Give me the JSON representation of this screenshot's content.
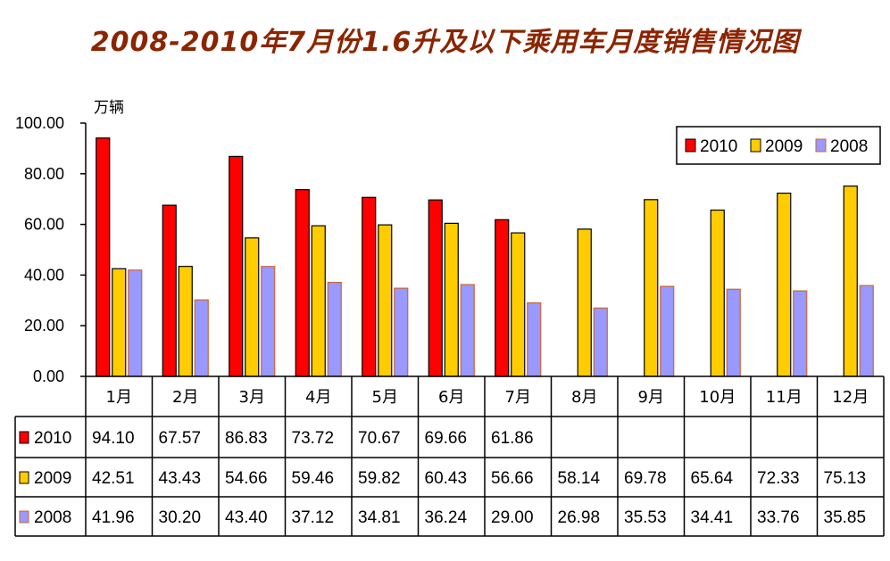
{
  "chart_data": {
    "type": "bar",
    "title": "2008-2010年7月份1.6升及以下乘用车月度销售情况图",
    "ylabel": "万辆",
    "ylim": [
      0,
      100
    ],
    "yticks": [
      "0.00",
      "20.00",
      "40.00",
      "60.00",
      "80.00",
      "100.00"
    ],
    "categories": [
      "1月",
      "2月",
      "3月",
      "4月",
      "5月",
      "6月",
      "7月",
      "8月",
      "9月",
      "10月",
      "11月",
      "12月"
    ],
    "legend_position": "top-right",
    "grid": false,
    "series": [
      {
        "name": "2010",
        "color": "#FF0000",
        "values": [
          94.1,
          67.57,
          86.83,
          73.72,
          70.67,
          69.66,
          61.86,
          null,
          null,
          null,
          null,
          null
        ],
        "labels": [
          "94.10",
          "67.57",
          "86.83",
          "73.72",
          "70.67",
          "69.66",
          "61.86",
          "",
          "",
          "",
          "",
          ""
        ]
      },
      {
        "name": "2009",
        "color": "#FFCC00",
        "values": [
          42.51,
          43.43,
          54.66,
          59.46,
          59.82,
          60.43,
          56.66,
          58.14,
          69.78,
          65.64,
          72.33,
          75.13
        ],
        "labels": [
          "42.51",
          "43.43",
          "54.66",
          "59.46",
          "59.82",
          "60.43",
          "56.66",
          "58.14",
          "69.78",
          "65.64",
          "72.33",
          "75.13"
        ]
      },
      {
        "name": "2008",
        "color": "#9999FF",
        "values": [
          41.96,
          30.2,
          43.4,
          37.12,
          34.81,
          36.24,
          29.0,
          26.98,
          35.53,
          34.41,
          33.76,
          35.85
        ],
        "labels": [
          "41.96",
          "30.20",
          "43.40",
          "37.12",
          "34.81",
          "36.24",
          "29.00",
          "26.98",
          "35.53",
          "34.41",
          "33.76",
          "35.85"
        ]
      }
    ]
  }
}
